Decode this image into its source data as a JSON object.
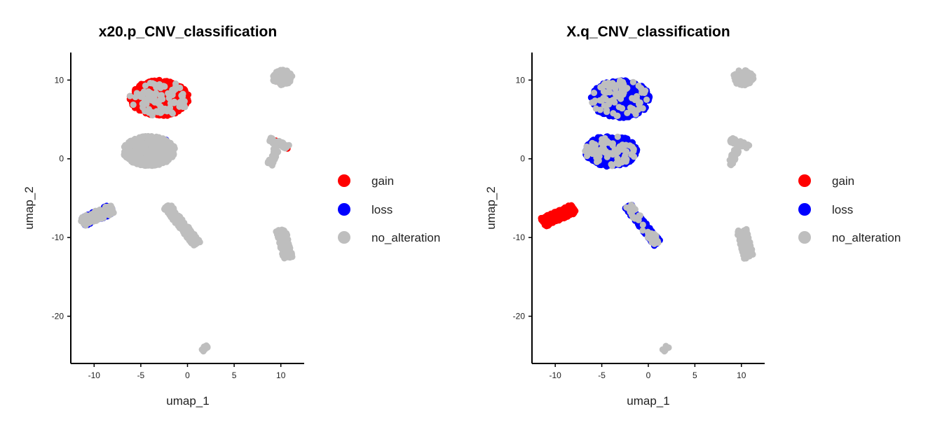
{
  "chart_data": [
    {
      "type": "scatter",
      "title": "x20.p_CNV_classification",
      "xlabel": "umap_1",
      "ylabel": "umap_2",
      "xlim": [
        -12.5,
        12.5
      ],
      "ylim": [
        -26,
        13.5
      ],
      "x_ticks": [
        -10,
        -5,
        0,
        5,
        10
      ],
      "y_ticks": [
        10,
        0,
        -10,
        -20
      ],
      "legend_position": "right",
      "legend": [
        {
          "label": "gain",
          "color": "#ff0000"
        },
        {
          "label": "loss",
          "color": "#0000ff"
        },
        {
          "label": "no_alteration",
          "color": "#bebebe"
        }
      ],
      "clusters": [
        {
          "name": "top-center",
          "shape": "blob",
          "cx": -3.0,
          "cy": 7.7,
          "rx": 3.2,
          "ry": 2.3,
          "n": 520,
          "composition": {
            "gain": 0.85,
            "no_alteration": 0.15
          }
        },
        {
          "name": "center",
          "shape": "blob",
          "cx": -4.1,
          "cy": 1.0,
          "rx": 2.8,
          "ry": 1.9,
          "n": 520,
          "composition": {
            "no_alteration": 0.97,
            "loss": 0.03
          }
        },
        {
          "name": "left",
          "shape": "line",
          "x1": -11.3,
          "y1": -8.1,
          "x2": -8.0,
          "y2": -6.3,
          "w": 0.6,
          "n": 240,
          "composition": {
            "loss": 0.55,
            "no_alteration": 0.45
          }
        },
        {
          "name": "bottom-center",
          "shape": "line",
          "x1": -2.2,
          "y1": -6.0,
          "x2": 1.0,
          "y2": -10.8,
          "w": 0.45,
          "n": 170,
          "composition": {
            "no_alteration": 1.0
          }
        },
        {
          "name": "top-right",
          "shape": "blob",
          "cx": 10.2,
          "cy": 10.3,
          "rx": 1.1,
          "ry": 1.0,
          "n": 90,
          "composition": {
            "no_alteration": 0.97,
            "gain": 0.03
          }
        },
        {
          "name": "right-middle",
          "shape": "line",
          "x1": 8.8,
          "y1": 2.4,
          "x2": 10.8,
          "y2": 1.5,
          "w": 0.3,
          "n": 55,
          "composition": {
            "no_alteration": 0.95,
            "gain": 0.05
          }
        },
        {
          "name": "right-middle-tail",
          "shape": "line",
          "x1": 9.5,
          "y1": 1.2,
          "x2": 8.8,
          "y2": -0.8,
          "w": 0.3,
          "n": 35,
          "composition": {
            "no_alteration": 1.0
          }
        },
        {
          "name": "right-bottom",
          "shape": "line",
          "x1": 10.0,
          "y1": -9.0,
          "x2": 10.8,
          "y2": -12.6,
          "w": 0.55,
          "n": 150,
          "composition": {
            "no_alteration": 1.0
          }
        },
        {
          "name": "bottom-small",
          "shape": "line",
          "x1": 1.6,
          "y1": -24.4,
          "x2": 2.1,
          "y2": -23.8,
          "w": 0.2,
          "n": 14,
          "composition": {
            "no_alteration": 1.0
          }
        }
      ]
    },
    {
      "type": "scatter",
      "title": "X.q_CNV_classification",
      "xlabel": "umap_1",
      "ylabel": "umap_2",
      "xlim": [
        -12.5,
        12.5
      ],
      "ylim": [
        -26,
        13.5
      ],
      "x_ticks": [
        -10,
        -5,
        0,
        5,
        10
      ],
      "y_ticks": [
        10,
        0,
        -10,
        -20
      ],
      "legend_position": "right",
      "legend": [
        {
          "label": "gain",
          "color": "#ff0000"
        },
        {
          "label": "loss",
          "color": "#0000ff"
        },
        {
          "label": "no_alteration",
          "color": "#bebebe"
        }
      ],
      "clusters": [
        {
          "name": "top-center",
          "shape": "blob",
          "cx": -3.0,
          "cy": 7.6,
          "rx": 3.2,
          "ry": 2.4,
          "n": 520,
          "composition": {
            "loss": 0.82,
            "no_alteration": 0.17,
            "gain": 0.01
          }
        },
        {
          "name": "center",
          "shape": "blob",
          "cx": -4.0,
          "cy": 1.0,
          "rx": 2.8,
          "ry": 2.0,
          "n": 520,
          "composition": {
            "loss": 0.84,
            "no_alteration": 0.15,
            "gain": 0.01
          }
        },
        {
          "name": "left",
          "shape": "line",
          "x1": -11.3,
          "y1": -8.1,
          "x2": -8.0,
          "y2": -6.3,
          "w": 0.6,
          "n": 240,
          "composition": {
            "gain": 1.0
          }
        },
        {
          "name": "bottom-center",
          "shape": "line",
          "x1": -2.2,
          "y1": -6.0,
          "x2": 1.0,
          "y2": -10.8,
          "w": 0.45,
          "n": 170,
          "composition": {
            "loss": 0.8,
            "no_alteration": 0.2
          }
        },
        {
          "name": "top-right",
          "shape": "blob",
          "cx": 10.2,
          "cy": 10.3,
          "rx": 1.1,
          "ry": 1.0,
          "n": 90,
          "composition": {
            "no_alteration": 1.0
          }
        },
        {
          "name": "right-middle",
          "shape": "line",
          "x1": 8.8,
          "y1": 2.4,
          "x2": 10.8,
          "y2": 1.5,
          "w": 0.3,
          "n": 55,
          "composition": {
            "no_alteration": 1.0
          }
        },
        {
          "name": "right-middle-tail",
          "shape": "line",
          "x1": 9.5,
          "y1": 1.2,
          "x2": 8.8,
          "y2": -0.8,
          "w": 0.3,
          "n": 35,
          "composition": {
            "no_alteration": 1.0
          }
        },
        {
          "name": "right-bottom",
          "shape": "line",
          "x1": 10.0,
          "y1": -9.0,
          "x2": 10.8,
          "y2": -12.6,
          "w": 0.55,
          "n": 150,
          "composition": {
            "no_alteration": 1.0
          }
        },
        {
          "name": "bottom-small",
          "shape": "line",
          "x1": 1.6,
          "y1": -24.4,
          "x2": 2.1,
          "y2": -23.8,
          "w": 0.2,
          "n": 14,
          "composition": {
            "no_alteration": 1.0
          }
        }
      ]
    }
  ]
}
